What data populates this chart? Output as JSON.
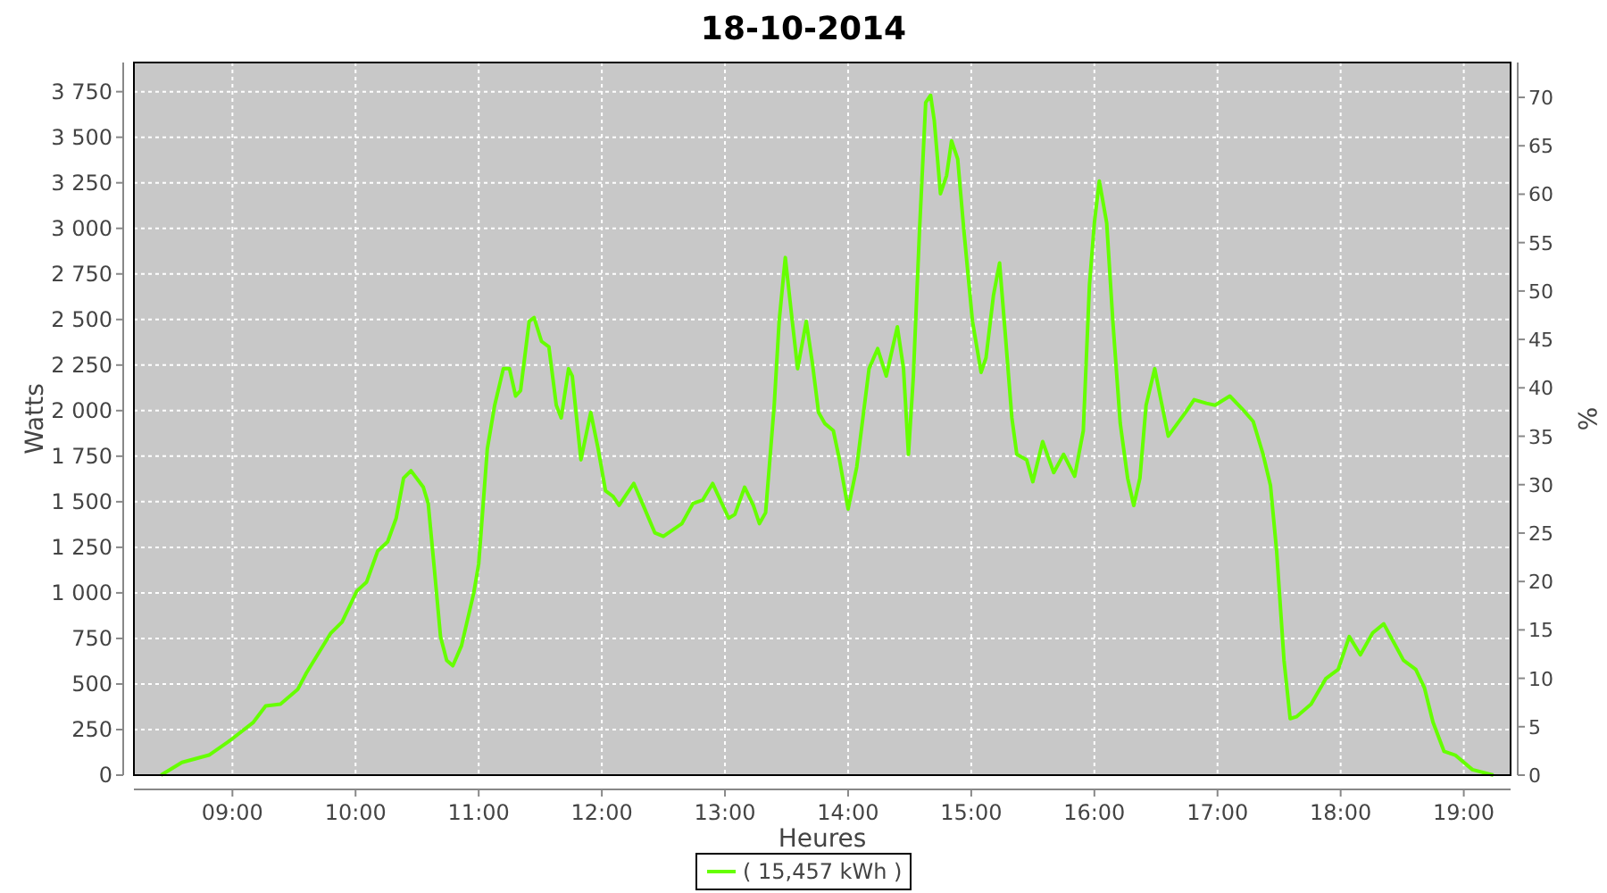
{
  "chart_data": {
    "type": "line",
    "title": "18-10-2014",
    "xlabel": "Heures",
    "ylabel": "Watts",
    "y2label": "%",
    "x": [
      8.42,
      8.59,
      8.81,
      8.98,
      9.17,
      9.27,
      9.39,
      9.53,
      9.6,
      9.8,
      9.89,
      10.01,
      10.09,
      10.18,
      10.26,
      10.33,
      10.39,
      10.45,
      10.55,
      10.59,
      10.64,
      10.69,
      10.74,
      10.79,
      10.86,
      10.96,
      11.0,
      11.07,
      11.13,
      11.2,
      11.25,
      11.3,
      11.34,
      11.41,
      11.45,
      11.51,
      11.57,
      11.63,
      11.67,
      11.73,
      11.76,
      11.83,
      11.91,
      11.97,
      12.03,
      12.09,
      12.14,
      12.26,
      12.33,
      12.43,
      12.5,
      12.65,
      12.74,
      12.82,
      12.9,
      13.03,
      13.08,
      13.16,
      13.23,
      13.28,
      13.33,
      13.4,
      13.44,
      13.49,
      13.54,
      13.59,
      13.66,
      13.71,
      13.76,
      13.81,
      13.88,
      13.93,
      14.0,
      14.07,
      14.17,
      14.24,
      14.31,
      14.4,
      14.45,
      14.49,
      14.53,
      14.58,
      14.63,
      14.67,
      14.7,
      14.75,
      14.8,
      14.84,
      14.89,
      14.94,
      15.01,
      15.08,
      15.12,
      15.18,
      15.23,
      15.28,
      15.33,
      15.37,
      15.45,
      15.5,
      15.58,
      15.67,
      15.75,
      15.84,
      15.91,
      15.96,
      16.0,
      16.04,
      16.1,
      16.15,
      16.21,
      16.27,
      16.32,
      16.37,
      16.42,
      16.49,
      16.54,
      16.6,
      16.74,
      16.81,
      16.91,
      16.98,
      17.1,
      17.2,
      17.29,
      17.37,
      17.43,
      17.48,
      17.54,
      17.59,
      17.64,
      17.76,
      17.88,
      17.98,
      18.07,
      18.16,
      18.26,
      18.35,
      18.43,
      18.51,
      18.61,
      18.68,
      18.75,
      18.84,
      18.93,
      19.07,
      19.24
    ],
    "series": [
      {
        "name": "( 15,457 kWh )",
        "color": "#66ff00",
        "values": [
          0,
          70,
          110,
          190,
          290,
          380,
          390,
          470,
          560,
          780,
          840,
          1010,
          1060,
          1230,
          1280,
          1410,
          1630,
          1670,
          1580,
          1490,
          1130,
          760,
          630,
          600,
          710,
          1000,
          1160,
          1790,
          2030,
          2230,
          2230,
          2080,
          2110,
          2490,
          2510,
          2380,
          2350,
          2030,
          1960,
          2230,
          2190,
          1730,
          1990,
          1790,
          1560,
          1530,
          1480,
          1600,
          1490,
          1330,
          1310,
          1380,
          1490,
          1510,
          1600,
          1410,
          1430,
          1580,
          1480,
          1380,
          1440,
          2030,
          2490,
          2840,
          2530,
          2230,
          2490,
          2260,
          1990,
          1930,
          1890,
          1730,
          1460,
          1690,
          2230,
          2340,
          2190,
          2460,
          2230,
          1760,
          2190,
          2990,
          3690,
          3730,
          3590,
          3190,
          3290,
          3480,
          3380,
          2990,
          2490,
          2210,
          2290,
          2630,
          2810,
          2390,
          1960,
          1760,
          1730,
          1610,
          1830,
          1660,
          1760,
          1640,
          1890,
          2690,
          3030,
          3260,
          3030,
          2490,
          1930,
          1630,
          1480,
          1630,
          2030,
          2230,
          2060,
          1860,
          1990,
          2060,
          2040,
          2030,
          2080,
          2010,
          1940,
          1760,
          1590,
          1230,
          630,
          310,
          320,
          390,
          530,
          580,
          760,
          660,
          780,
          830,
          730,
          630,
          580,
          480,
          290,
          130,
          110,
          30,
          0
        ]
      }
    ],
    "xlim": [
      8.2,
      19.38
    ],
    "xticks": [
      {
        "value": 9,
        "label": "09:00"
      },
      {
        "value": 10,
        "label": "10:00"
      },
      {
        "value": 11,
        "label": "11:00"
      },
      {
        "value": 12,
        "label": "12:00"
      },
      {
        "value": 13,
        "label": "13:00"
      },
      {
        "value": 14,
        "label": "14:00"
      },
      {
        "value": 15,
        "label": "15:00"
      },
      {
        "value": 16,
        "label": "16:00"
      },
      {
        "value": 17,
        "label": "17:00"
      },
      {
        "value": 18,
        "label": "18:00"
      },
      {
        "value": 19,
        "label": "19:00"
      }
    ],
    "ylim": [
      0,
      3910
    ],
    "yticks": [
      0,
      {
        "value": 250,
        "label": "250"
      },
      {
        "value": 500,
        "label": "500"
      },
      {
        "value": 750,
        "label": "750"
      },
      {
        "value": 1000,
        "label": "1 000"
      },
      {
        "value": 1250,
        "label": "1 250"
      },
      {
        "value": 1500,
        "label": "1 500"
      },
      {
        "value": 1750,
        "label": "1 750"
      },
      {
        "value": 2000,
        "label": "2 000"
      },
      {
        "value": 2250,
        "label": "2 250"
      },
      {
        "value": 2500,
        "label": "2 500"
      },
      {
        "value": 2750,
        "label": "2 750"
      },
      {
        "value": 3000,
        "label": "3 000"
      },
      {
        "value": 3250,
        "label": "3 250"
      },
      {
        "value": 3500,
        "label": "3 500"
      },
      {
        "value": 3750,
        "label": "3 750"
      }
    ],
    "y2lim": [
      0,
      73.6
    ],
    "y2ticks": [
      0,
      5,
      10,
      15,
      20,
      25,
      30,
      35,
      40,
      45,
      50,
      55,
      60,
      65,
      70
    ],
    "grid": true,
    "legend": "bottom"
  }
}
